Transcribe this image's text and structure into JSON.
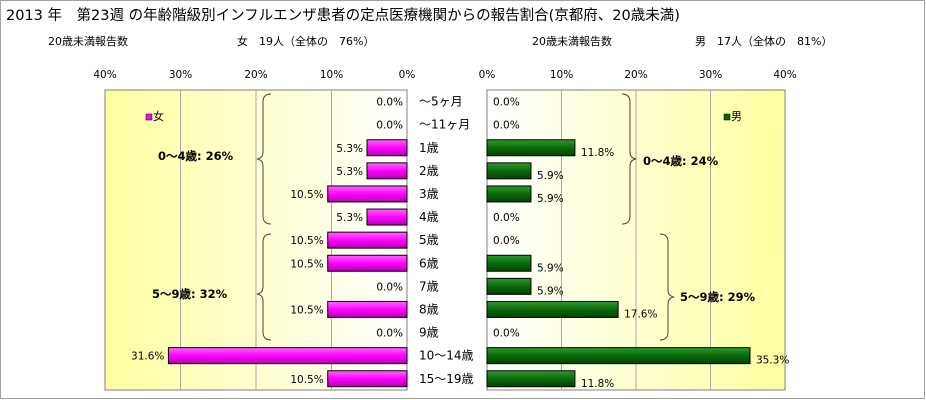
{
  "title": "2013 年　第23週 の年齢階級別インフルエンザ患者の定点医療機関からの報告割合(京都府、20歳未満)",
  "female_header": {
    "count_label": "20歳未満報告数",
    "summary": "女　19人（全体の　76%）"
  },
  "male_header": {
    "count_label": "20歳未満報告数",
    "summary": "男　17人（全体の　81%）"
  },
  "colors": {
    "female": "#ff00ff",
    "male": "#006600",
    "band": "#ffffa8",
    "grid": "#a8a8a8"
  },
  "chart_data": [
    {
      "type": "bar",
      "orientation": "horizontal",
      "direction": "right-to-left",
      "legend": "女",
      "legend_position": "top-left",
      "categories": [
        "～5ヶ月",
        "～11ヶ月",
        "1歳",
        "2歳",
        "3歳",
        "4歳",
        "5歳",
        "6歳",
        "7歳",
        "8歳",
        "9歳",
        "10～14歳",
        "15～19歳"
      ],
      "values": [
        0.0,
        0.0,
        5.3,
        5.3,
        10.5,
        5.3,
        10.5,
        10.5,
        0.0,
        10.5,
        0.0,
        31.6,
        10.5
      ],
      "value_labels": [
        "0.0%",
        "0.0%",
        "5.3%",
        "5.3%",
        "10.5%",
        "5.3%",
        "10.5%",
        "10.5%",
        "0.0%",
        "10.5%",
        "0.0%",
        "31.6%",
        "10.5%"
      ],
      "xlim": [
        0,
        40
      ],
      "ticks": [
        "40%",
        "30%",
        "20%",
        "10%",
        "0%"
      ],
      "grid": true,
      "groups": [
        {
          "label": "0～4歳:  26%",
          "from": "～5ヶ月",
          "to": "4歳"
        },
        {
          "label": "5～9歳:  32%",
          "from": "5歳",
          "to": "9歳"
        }
      ]
    },
    {
      "type": "bar",
      "orientation": "horizontal",
      "direction": "left-to-right",
      "legend": "男",
      "legend_position": "top-right",
      "categories": [
        "～5ヶ月",
        "～11ヶ月",
        "1歳",
        "2歳",
        "3歳",
        "4歳",
        "5歳",
        "6歳",
        "7歳",
        "8歳",
        "9歳",
        "10～14歳",
        "15～19歳"
      ],
      "values": [
        0.0,
        0.0,
        11.8,
        5.9,
        5.9,
        0.0,
        0.0,
        5.9,
        5.9,
        17.6,
        0.0,
        35.3,
        11.8
      ],
      "value_labels": [
        "0.0%",
        "0.0%",
        "11.8%",
        "5.9%",
        "5.9%",
        "0.0%",
        "0.0%",
        "5.9%",
        "5.9%",
        "17.6%",
        "0.0%",
        "35.3%",
        "11.8%"
      ],
      "xlim": [
        0,
        40
      ],
      "ticks": [
        "0%",
        "10%",
        "20%",
        "30%",
        "40%"
      ],
      "grid": true,
      "groups": [
        {
          "label": "0～4歳:  24%",
          "from": "～5ヶ月",
          "to": "4歳"
        },
        {
          "label": "5～9歳:  29%",
          "from": "5歳",
          "to": "9歳"
        }
      ]
    }
  ]
}
